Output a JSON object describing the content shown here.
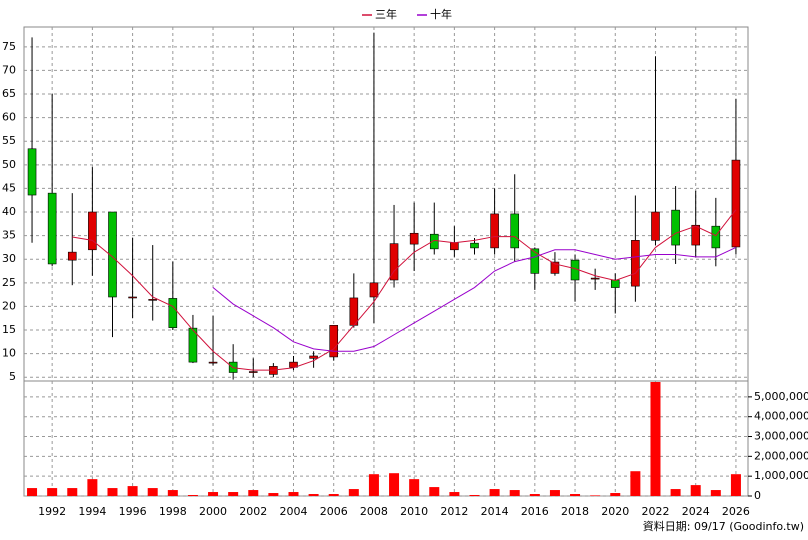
{
  "chart_data": [
    {
      "type": "candlestick",
      "x": [
        1991,
        1992,
        1993,
        1994,
        1995,
        1996,
        1997,
        1998,
        1999,
        2000,
        2001,
        2002,
        2003,
        2004,
        2005,
        2006,
        2007,
        2008,
        2009,
        2010,
        2011,
        2012,
        2013,
        2014,
        2015,
        2016,
        2017,
        2018,
        2019,
        2020,
        2021,
        2022,
        2023,
        2024,
        2025,
        2026
      ],
      "open": [
        53.4,
        44,
        29.8,
        32,
        40,
        22,
        21.5,
        21.7,
        15.4,
        8.2,
        8.2,
        6.2,
        5.6,
        7.1,
        9,
        9.3,
        16,
        22,
        25.6,
        33.2,
        35.3,
        32,
        33.4,
        32.4,
        39.6,
        32.2,
        27,
        29.8,
        26,
        25.6,
        24.3,
        34,
        40.4,
        33,
        37,
        32.6
      ],
      "high": [
        77,
        65,
        44,
        49.5,
        40,
        34.5,
        33,
        29.5,
        18.2,
        18,
        12,
        9,
        8,
        9.5,
        10.5,
        16,
        27,
        78,
        41.5,
        42,
        42,
        37,
        34.5,
        45,
        48,
        32.5,
        31.5,
        31,
        28,
        27,
        43.5,
        73,
        45.5,
        44.5,
        43,
        64
      ],
      "low": [
        33.5,
        28.5,
        24.5,
        26.5,
        13.5,
        17.5,
        17,
        15,
        8,
        7.5,
        4.5,
        5,
        5,
        6.5,
        7,
        8.5,
        15.5,
        16.5,
        24,
        27.5,
        31,
        30.5,
        31,
        31,
        29.5,
        23.5,
        26.5,
        21,
        23.5,
        18.5,
        21,
        33,
        29,
        30.5,
        28.5,
        31
      ],
      "close": [
        43.6,
        29,
        31.5,
        40,
        22,
        22,
        21.5,
        15.5,
        8.2,
        8.2,
        6,
        6.2,
        7.3,
        8.2,
        9.5,
        16,
        21.8,
        25,
        33.3,
        35.5,
        32.2,
        33.5,
        32.4,
        39.6,
        32.4,
        27,
        29.4,
        25.6,
        26,
        24,
        34,
        40,
        33,
        37.2,
        32.4,
        51
      ],
      "up_color": "#e00000",
      "down_color": "#00c000",
      "series": [
        {
          "name": "三年",
          "color": "#d0103a",
          "values": [
            null,
            null,
            34.7,
            34,
            30.5,
            26.5,
            22,
            20,
            15,
            10.5,
            7,
            6.5,
            6.5,
            7,
            8.5,
            11,
            16,
            21,
            27.5,
            31.5,
            34,
            33.5,
            34,
            34.8,
            34.8,
            31.5,
            29,
            28,
            26.5,
            25.5,
            27,
            32.5,
            35.5,
            37,
            35,
            40.5
          ]
        },
        {
          "name": "十年",
          "color": "#9900cc",
          "values": [
            null,
            null,
            null,
            null,
            null,
            null,
            null,
            null,
            null,
            24,
            20.5,
            18,
            15.5,
            12.5,
            11,
            10.5,
            10.5,
            11.5,
            14,
            16.5,
            19,
            21.5,
            24,
            27.5,
            29.5,
            30.5,
            32,
            32,
            31,
            30,
            30.5,
            31,
            31,
            30.5,
            30.5,
            32.5
          ]
        }
      ],
      "xlim": [
        1990.6,
        2026.6
      ],
      "xticks": [
        1992,
        1994,
        1996,
        1998,
        2000,
        2002,
        2004,
        2006,
        2008,
        2010,
        2012,
        2014,
        2016,
        2018,
        2020,
        2022,
        2024,
        2026
      ],
      "ylim": [
        4.2,
        79.2
      ],
      "yticks": [
        5,
        10,
        15,
        20,
        25,
        30,
        35,
        40,
        45,
        50,
        55,
        60,
        65,
        70,
        75
      ],
      "grid": true
    },
    {
      "type": "bar",
      "x": [
        1991,
        1992,
        1993,
        1994,
        1995,
        1996,
        1997,
        1998,
        1999,
        2000,
        2001,
        2002,
        2003,
        2004,
        2005,
        2006,
        2007,
        2008,
        2009,
        2010,
        2011,
        2012,
        2013,
        2014,
        2015,
        2016,
        2017,
        2018,
        2019,
        2020,
        2021,
        2022,
        2023,
        2024,
        2025,
        2026
      ],
      "values": [
        400000,
        400000,
        400000,
        850000,
        400000,
        500000,
        400000,
        300000,
        50000,
        200000,
        200000,
        300000,
        150000,
        200000,
        100000,
        100000,
        350000,
        1100000,
        1150000,
        850000,
        450000,
        200000,
        50000,
        350000,
        300000,
        100000,
        300000,
        100000,
        30000,
        150000,
        1250000,
        5750000,
        350000,
        550000,
        300000,
        1100000
      ],
      "color": "#ff0000",
      "xlim": [
        1990.6,
        2026.6
      ],
      "ylim": [
        0,
        5800000
      ],
      "yticks": [
        {
          "value": 0,
          "label": "0"
        },
        {
          "value": 1000000,
          "label": "1,000,000"
        },
        {
          "value": 2000000,
          "label": "2,000,000"
        },
        {
          "value": 3000000,
          "label": "3,000,000"
        },
        {
          "value": 4000000,
          "label": "4,000,000"
        },
        {
          "value": 5000000,
          "label": "5,000,000"
        }
      ],
      "grid": true,
      "footnote": "資料日期: 09/17 (Goodinfo.tw)"
    }
  ]
}
